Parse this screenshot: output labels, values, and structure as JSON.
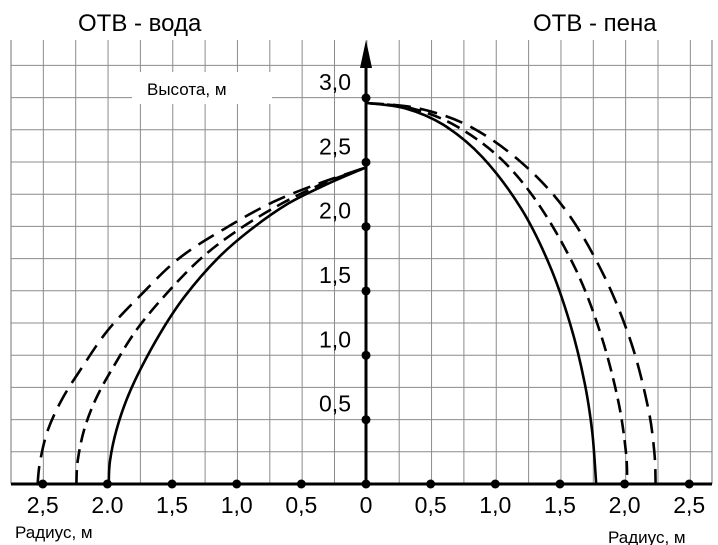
{
  "chart_data": {
    "type": "line",
    "titles": {
      "left": "ОТВ - вода",
      "right": "ОТВ - пена"
    },
    "ylabel": "Высота, м",
    "xlabel_left": "Радиус, м",
    "xlabel_right": "Радиус, м",
    "x_ticks_left": [
      "2,5",
      "2.0",
      "1,5",
      "1,0",
      "0,5"
    ],
    "x_tick_zero": "0",
    "x_ticks_right": [
      "0,5",
      "1,0",
      "1,5",
      "2,0",
      "2,5"
    ],
    "y_ticks": [
      "3,0",
      "2,5",
      "2,0",
      "1,5",
      "1,0",
      "0,5"
    ],
    "xlim": [
      -2.75,
      2.75
    ],
    "ylim": [
      0,
      3.05
    ],
    "series": [
      {
        "side": "left",
        "style": "solid",
        "points": [
          [
            -1.99,
            0
          ],
          [
            -1.98,
            0.18
          ],
          [
            -1.93,
            0.42
          ],
          [
            -1.85,
            0.66
          ],
          [
            -1.74,
            0.9
          ],
          [
            -1.58,
            1.19
          ],
          [
            -1.4,
            1.46
          ],
          [
            -1.15,
            1.75
          ],
          [
            -0.9,
            1.97
          ],
          [
            -0.6,
            2.18
          ],
          [
            -0.3,
            2.33
          ],
          [
            0,
            2.46
          ]
        ]
      },
      {
        "side": "left",
        "style": "dashed",
        "points": [
          [
            -2.24,
            0
          ],
          [
            -2.23,
            0.18
          ],
          [
            -2.18,
            0.42
          ],
          [
            -2.09,
            0.66
          ],
          [
            -1.96,
            0.9
          ],
          [
            -1.78,
            1.19
          ],
          [
            -1.56,
            1.46
          ],
          [
            -1.28,
            1.75
          ],
          [
            -0.98,
            1.98
          ],
          [
            -0.65,
            2.18
          ],
          [
            -0.32,
            2.34
          ],
          [
            0,
            2.46
          ]
        ]
      },
      {
        "side": "left",
        "style": "long-dashed",
        "points": [
          [
            -2.54,
            0
          ],
          [
            -2.52,
            0.18
          ],
          [
            -2.46,
            0.42
          ],
          [
            -2.35,
            0.66
          ],
          [
            -2.2,
            0.9
          ],
          [
            -2.0,
            1.19
          ],
          [
            -1.75,
            1.46
          ],
          [
            -1.45,
            1.75
          ],
          [
            -1.1,
            1.98
          ],
          [
            -0.72,
            2.19
          ],
          [
            -0.35,
            2.34
          ],
          [
            0,
            2.46
          ]
        ]
      },
      {
        "side": "right",
        "style": "solid",
        "points": [
          [
            0,
            2.96
          ],
          [
            0.3,
            2.92
          ],
          [
            0.6,
            2.79
          ],
          [
            0.9,
            2.54
          ],
          [
            1.2,
            2.14
          ],
          [
            1.42,
            1.7
          ],
          [
            1.58,
            1.24
          ],
          [
            1.69,
            0.79
          ],
          [
            1.75,
            0.4
          ],
          [
            1.78,
            0
          ]
        ]
      },
      {
        "side": "right",
        "style": "dashed",
        "points": [
          [
            0,
            2.96
          ],
          [
            0.35,
            2.92
          ],
          [
            0.7,
            2.78
          ],
          [
            1.05,
            2.52
          ],
          [
            1.35,
            2.15
          ],
          [
            1.63,
            1.65
          ],
          [
            1.82,
            1.15
          ],
          [
            1.95,
            0.65
          ],
          [
            2.01,
            0.25
          ],
          [
            2.02,
            0
          ]
        ]
      },
      {
        "side": "right",
        "style": "long-dashed",
        "points": [
          [
            0,
            2.96
          ],
          [
            0.4,
            2.92
          ],
          [
            0.8,
            2.78
          ],
          [
            1.2,
            2.5
          ],
          [
            1.55,
            2.12
          ],
          [
            1.84,
            1.62
          ],
          [
            2.05,
            1.1
          ],
          [
            2.18,
            0.6
          ],
          [
            2.23,
            0.25
          ],
          [
            2.24,
            0
          ]
        ]
      }
    ]
  }
}
